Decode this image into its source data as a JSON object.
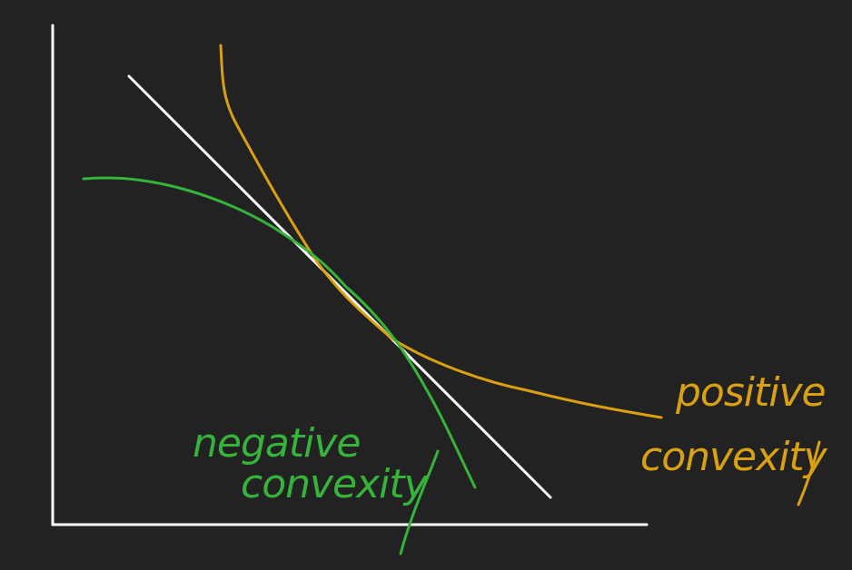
{
  "colors": {
    "background": "#222222",
    "axes": "#ffffff",
    "tangent": "#ffffff",
    "positive": "#d9a012",
    "negative": "#35b33a"
  },
  "labels": {
    "positive_line1": "positive",
    "positive_line2": "convexity",
    "negative_line1": "negative",
    "negative_line2": "convexity"
  }
}
